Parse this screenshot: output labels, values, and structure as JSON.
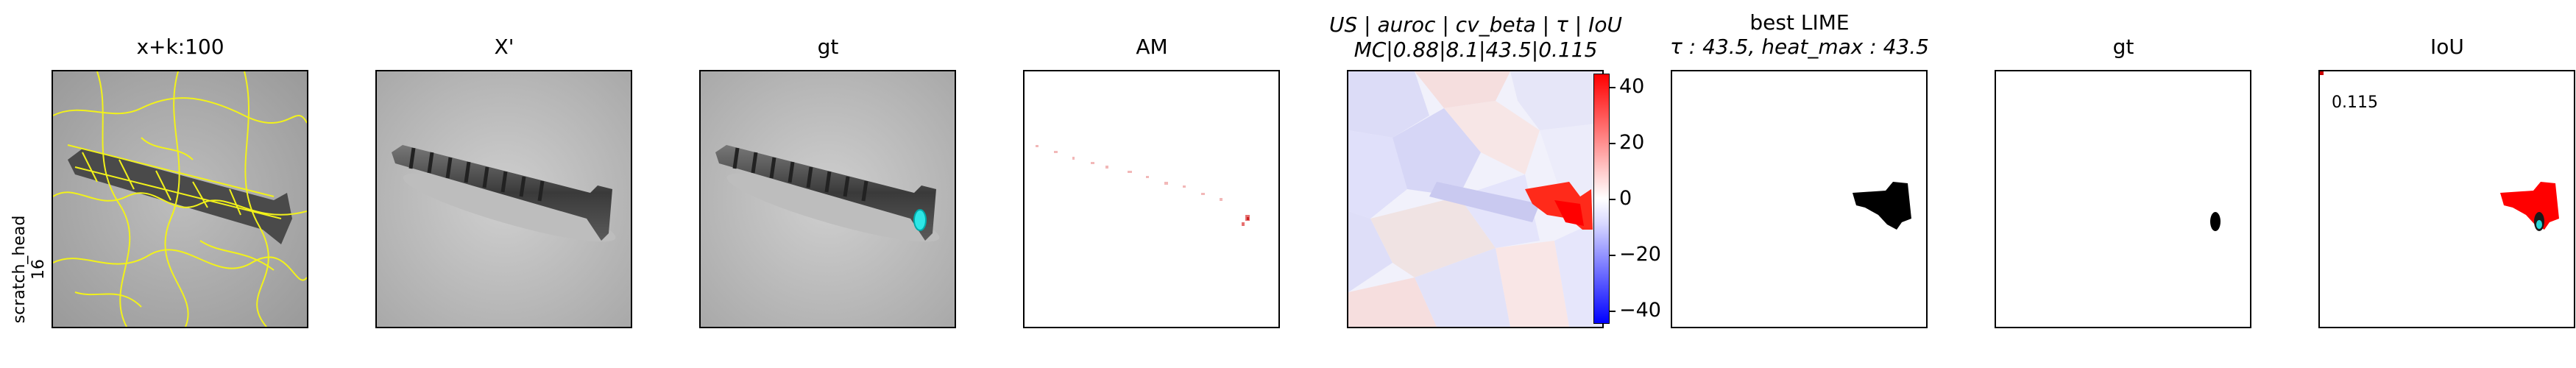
{
  "row_label": [
    "scratch_head",
    "16"
  ],
  "panels": [
    {
      "title": "x+k:100"
    },
    {
      "title": "X'"
    },
    {
      "title": "gt"
    },
    {
      "title": "AM"
    },
    {
      "title_line1": "US | auroc | cv_beta | τ | IoU",
      "title_line2": "MC|0.88|8.1|43.5|0.115"
    },
    {
      "title_line1": "best LIME",
      "title_line2": "τ : 43.5, heat_max : 43.5"
    },
    {
      "title": "gt"
    },
    {
      "title": "IoU"
    }
  ],
  "colorbar": {
    "ticks": [
      "40",
      "20",
      "0",
      "−20",
      "−40"
    ],
    "colors": {
      "max": "#ff0000",
      "mid": "#ffffff",
      "min": "#0000ff"
    }
  },
  "iou_value": "0.115"
}
